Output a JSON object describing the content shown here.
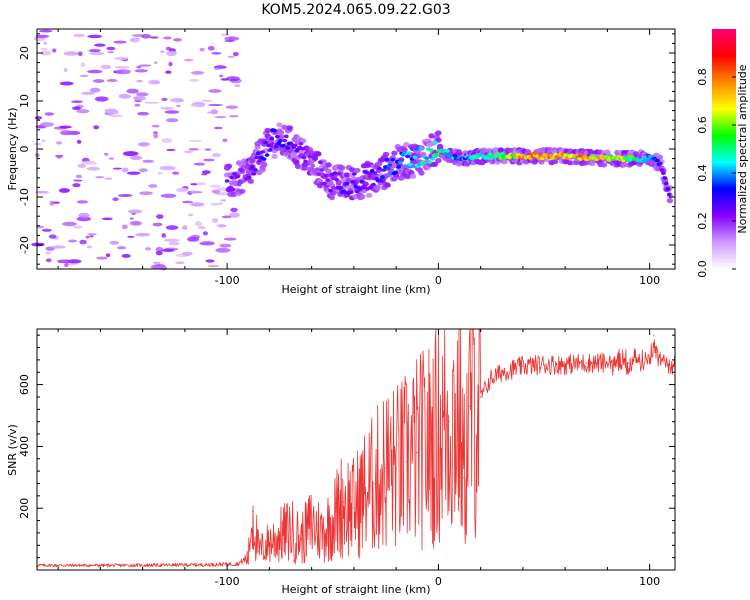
{
  "title": "KOM5.2024.065.09.22.G03",
  "chart_data": [
    {
      "type": "heatmap",
      "xlabel": "Height of straight line (km)",
      "ylabel": "Frequency (Hz)",
      "xlim": [
        -190,
        112
      ],
      "ylim": [
        -25,
        25
      ],
      "xticks": [
        -100,
        0,
        100
      ],
      "yticks": [
        -20,
        -10,
        0,
        10,
        20
      ],
      "colorbar": {
        "label": "Normalized spectral amplitude",
        "range": [
          0,
          1
        ],
        "ticks": [
          0.0,
          0.2,
          0.4,
          0.6,
          0.8
        ],
        "tick_labels": [
          "0.0",
          "0.2",
          "0.4",
          "0.6",
          "0.8"
        ],
        "colors": [
          "#ffffff",
          "#cc99ff",
          "#8800ff",
          "#0000ff",
          "#00ffff",
          "#00ff00",
          "#ffff00",
          "#ff8800",
          "#ff0000",
          "#ff0077"
        ]
      },
      "ridge": [
        {
          "x": -100,
          "y": -7,
          "amp": 0.25
        },
        {
          "x": -92,
          "y": -6,
          "amp": 0.2
        },
        {
          "x": -85,
          "y": -2,
          "amp": 0.3
        },
        {
          "x": -78,
          "y": 2,
          "amp": 0.35
        },
        {
          "x": -70,
          "y": 1,
          "amp": 0.3
        },
        {
          "x": -60,
          "y": -3,
          "amp": 0.2
        },
        {
          "x": -50,
          "y": -7,
          "amp": 0.25
        },
        {
          "x": -40,
          "y": -7,
          "amp": 0.3
        },
        {
          "x": -30,
          "y": -6,
          "amp": 0.3
        },
        {
          "x": -20,
          "y": -3,
          "amp": 0.4
        },
        {
          "x": -10,
          "y": -2,
          "amp": 0.45
        },
        {
          "x": 0,
          "y": 0,
          "amp": 0.55
        },
        {
          "x": 10,
          "y": -2,
          "amp": 0.4
        },
        {
          "x": 20,
          "y": -1.5,
          "amp": 0.5
        },
        {
          "x": 30,
          "y": -1.5,
          "amp": 0.6
        },
        {
          "x": 40,
          "y": -1.5,
          "amp": 0.8
        },
        {
          "x": 60,
          "y": -1.5,
          "amp": 0.8
        },
        {
          "x": 80,
          "y": -2,
          "amp": 0.75
        },
        {
          "x": 90,
          "y": -2,
          "amp": 0.6
        },
        {
          "x": 100,
          "y": -2,
          "amp": 0.45
        },
        {
          "x": 105,
          "y": -3,
          "amp": 0.3
        },
        {
          "x": 110,
          "y": -10,
          "amp": 0.3
        }
      ]
    },
    {
      "type": "line",
      "xlabel": "Height of straight line (km)",
      "ylabel": "SNR (v/v)",
      "xlim": [
        -190,
        112
      ],
      "ylim": [
        0,
        780
      ],
      "xticks": [
        -100,
        0,
        100
      ],
      "yticks": [
        200,
        400,
        600
      ],
      "color": "#ee3333",
      "series": [
        {
          "x": [
            -190,
            -150,
            -110,
            -95,
            -90,
            -88,
            -85,
            -80,
            -75,
            -70,
            -65,
            -60,
            -55,
            -50,
            -45,
            -40,
            -35,
            -30,
            -25,
            -20,
            -15,
            -10,
            -5,
            0,
            5,
            10,
            12,
            15,
            20,
            25,
            30,
            40,
            50,
            60,
            70,
            80,
            90,
            95,
            100,
            102,
            105,
            112
          ],
          "y": [
            15,
            15,
            17,
            20,
            40,
            190,
            60,
            90,
            110,
            130,
            100,
            150,
            120,
            160,
            220,
            200,
            250,
            280,
            330,
            330,
            350,
            380,
            400,
            440,
            480,
            510,
            300,
            530,
            560,
            620,
            640,
            660,
            665,
            665,
            670,
            670,
            670,
            675,
            680,
            760,
            670,
            670
          ]
        }
      ]
    }
  ]
}
